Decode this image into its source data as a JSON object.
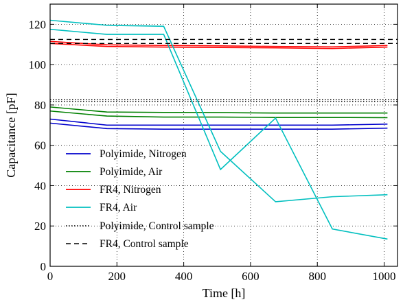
{
  "chart_data": {
    "type": "line",
    "xlabel": "Time [h]",
    "ylabel": "Capacitance [pF]",
    "xlim": [
      0,
      1040
    ],
    "ylim": [
      0,
      130
    ],
    "xticks": [
      0,
      200,
      400,
      600,
      800,
      1000
    ],
    "yticks": [
      0,
      20,
      40,
      60,
      80,
      100,
      120
    ],
    "grid": true,
    "grid_style": "dotted",
    "legend_position": "lower-left",
    "series": [
      {
        "name": "Polyimide, Nitrogen",
        "color": "#0000cc",
        "dash": "solid",
        "points": [
          [
            0,
            73
          ],
          [
            170,
            70
          ],
          [
            340,
            70
          ],
          [
            510,
            70
          ],
          [
            675,
            70
          ],
          [
            845,
            70
          ],
          [
            1010,
            70.5
          ]
        ]
      },
      {
        "name": "Polyimide, Nitrogen",
        "color": "#0000cc",
        "dash": "solid",
        "points": [
          [
            0,
            71
          ],
          [
            170,
            68.3
          ],
          [
            340,
            68
          ],
          [
            510,
            68
          ],
          [
            675,
            68
          ],
          [
            845,
            68
          ],
          [
            1010,
            68.5
          ]
        ]
      },
      {
        "name": "Polyimide, Air",
        "color": "#008000",
        "dash": "solid",
        "points": [
          [
            0,
            79
          ],
          [
            170,
            76.5
          ],
          [
            340,
            76.3
          ],
          [
            510,
            76.2
          ],
          [
            675,
            76
          ],
          [
            845,
            76
          ],
          [
            1010,
            76
          ]
        ]
      },
      {
        "name": "Polyimide, Air",
        "color": "#008000",
        "dash": "solid",
        "points": [
          [
            0,
            77
          ],
          [
            170,
            74.5
          ],
          [
            340,
            74
          ],
          [
            510,
            74
          ],
          [
            675,
            73.8
          ],
          [
            845,
            73.8
          ],
          [
            1010,
            73.7
          ]
        ]
      },
      {
        "name": "FR4, Nitrogen",
        "color": "#ff0000",
        "dash": "solid",
        "points": [
          [
            0,
            111.5
          ],
          [
            170,
            109.8
          ],
          [
            340,
            109.5
          ],
          [
            510,
            109.3
          ],
          [
            675,
            109
          ],
          [
            845,
            108.8
          ],
          [
            1010,
            109.5
          ]
        ]
      },
      {
        "name": "FR4, Nitrogen",
        "color": "#ff0000",
        "dash": "solid",
        "points": [
          [
            0,
            110.5
          ],
          [
            170,
            109
          ],
          [
            340,
            108.7
          ],
          [
            510,
            108.5
          ],
          [
            675,
            108.3
          ],
          [
            845,
            108
          ],
          [
            1010,
            108.7
          ]
        ]
      },
      {
        "name": "FR4, Air",
        "color": "#00bfbf",
        "dash": "solid",
        "points": [
          [
            0,
            122
          ],
          [
            170,
            119.5
          ],
          [
            340,
            119
          ],
          [
            510,
            57
          ],
          [
            675,
            32
          ],
          [
            845,
            34.5
          ],
          [
            1010,
            35.5
          ]
        ]
      },
      {
        "name": "FR4, Air",
        "color": "#00bfbf",
        "dash": "solid",
        "points": [
          [
            0,
            117.5
          ],
          [
            170,
            115
          ],
          [
            340,
            115
          ],
          [
            510,
            48
          ],
          [
            675,
            73.5
          ],
          [
            845,
            18.5
          ],
          [
            1010,
            13.5
          ]
        ]
      },
      {
        "name": "Polyimide, Control sample",
        "color": "#000000",
        "dash": "dotted",
        "points": [
          [
            0,
            82.8
          ],
          [
            1040,
            82.8
          ]
        ]
      },
      {
        "name": "Polyimide, Control sample",
        "color": "#000000",
        "dash": "dotted",
        "points": [
          [
            0,
            81.8
          ],
          [
            1040,
            81.8
          ]
        ]
      },
      {
        "name": "FR4, Control sample",
        "color": "#000000",
        "dash": "dashed",
        "points": [
          [
            0,
            112.5
          ],
          [
            1040,
            112.5
          ]
        ]
      },
      {
        "name": "FR4, Control sample",
        "color": "#000000",
        "dash": "dashed",
        "points": [
          [
            0,
            110.5
          ],
          [
            1040,
            110.5
          ]
        ]
      }
    ],
    "legend": [
      {
        "label": "Polyimide, Nitrogen",
        "color": "#0000cc",
        "dash": "solid"
      },
      {
        "label": "Polyimide, Air",
        "color": "#008000",
        "dash": "solid"
      },
      {
        "label": "FR4, Nitrogen",
        "color": "#ff0000",
        "dash": "solid"
      },
      {
        "label": "FR4, Air",
        "color": "#00bfbf",
        "dash": "solid"
      },
      {
        "label": "Polyimide, Control sample",
        "color": "#000000",
        "dash": "dotted"
      },
      {
        "label": "FR4, Control sample",
        "color": "#000000",
        "dash": "dashed"
      }
    ]
  }
}
